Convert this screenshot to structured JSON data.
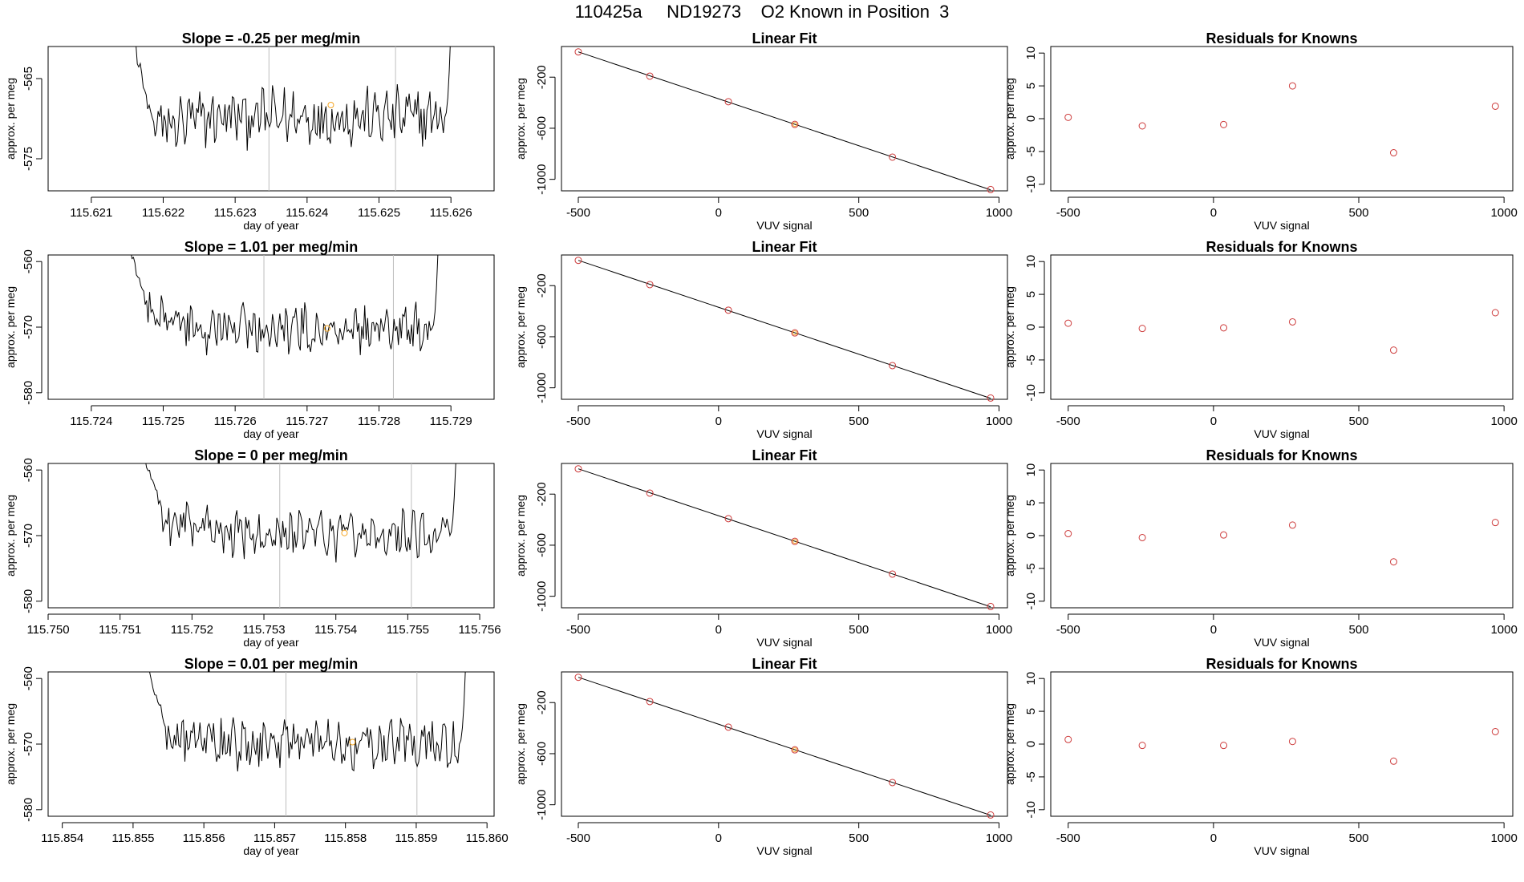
{
  "page": {
    "title": "110425a     ND19273    O2 Known in Position  3"
  },
  "colors": {
    "trace": "#000000",
    "axis": "#000000",
    "interval_line": "#bebebe",
    "fit_point": "#cd3b3b",
    "marker": "#f5a623",
    "fit_line": "#000000"
  },
  "chart_data": [
    {
      "type": "line",
      "row": 0,
      "panel": "time-trace",
      "title": "Slope =  -0.25  per meg/min",
      "xlabel": "day of year",
      "ylabel": "approx. per meg",
      "xlim": [
        115.6204,
        115.6266
      ],
      "ylim": [
        -579,
        -561
      ],
      "xticks": [
        "115.621",
        "115.622",
        "115.623",
        "115.624",
        "115.625",
        "115.626"
      ],
      "xtick_values": [
        115.621,
        115.622,
        115.623,
        115.624,
        115.625,
        115.626
      ],
      "yticks": [
        "-565",
        "-575"
      ],
      "ytick_values": [
        -565,
        -575
      ],
      "trace_start": 115.62133,
      "trace_end": 115.62608,
      "baseline": -569.8,
      "start_y": -572,
      "interval_lines": [
        115.62347,
        115.62523
      ],
      "marker": {
        "x": 115.62433,
        "y": -568.3
      }
    },
    {
      "type": "scatter",
      "row": 0,
      "panel": "linear-fit",
      "title": "Linear Fit",
      "xlabel": "VUV signal",
      "ylabel": "approx. per meg",
      "xlim": [
        -560,
        1030
      ],
      "ylim": [
        -1090,
        40
      ],
      "xticks": [
        "-500",
        "0",
        "500",
        "1000"
      ],
      "xtick_values": [
        -500,
        0,
        500,
        1000
      ],
      "yticks": [
        "-200",
        "-600",
        "-1000"
      ],
      "ytick_values": [
        -200,
        -600,
        -1000
      ],
      "points": [
        {
          "x": -500,
          "y": -2
        },
        {
          "x": -245,
          "y": -192
        },
        {
          "x": 35,
          "y": -392
        },
        {
          "x": 272,
          "y": -570
        },
        {
          "x": 620,
          "y": -826
        },
        {
          "x": 970,
          "y": -1080
        }
      ],
      "highlight_index": 3,
      "fit_line": [
        [
          -500,
          -2
        ],
        [
          970,
          -1082
        ]
      ]
    },
    {
      "type": "scatter",
      "row": 0,
      "panel": "residuals",
      "title": "Residuals for Knowns",
      "xlabel": "VUV signal",
      "ylabel": "approx. per meg",
      "xlim": [
        -560,
        1030
      ],
      "ylim": [
        -11,
        11
      ],
      "xticks": [
        "-500",
        "0",
        "500",
        "1000"
      ],
      "xtick_values": [
        -500,
        0,
        500,
        1000
      ],
      "yticks": [
        "10",
        "5",
        "0",
        "-5",
        "-10"
      ],
      "ytick_values": [
        10,
        5,
        0,
        -5,
        -10
      ],
      "points": [
        {
          "x": -500,
          "y": 0.2
        },
        {
          "x": -245,
          "y": -1.1
        },
        {
          "x": 35,
          "y": -0.9
        },
        {
          "x": 272,
          "y": 5.0
        },
        {
          "x": 620,
          "y": -5.2
        },
        {
          "x": 970,
          "y": 1.9
        }
      ]
    },
    {
      "type": "line",
      "row": 1,
      "panel": "time-trace",
      "title": "Slope =  1.01  per meg/min",
      "xlabel": "day of year",
      "ylabel": "approx. per meg",
      "xlim": [
        115.7234,
        115.7296
      ],
      "ylim": [
        -581,
        -559
      ],
      "xticks": [
        "115.724",
        "115.725",
        "115.726",
        "115.727",
        "115.728",
        "115.729"
      ],
      "xtick_values": [
        115.724,
        115.725,
        115.726,
        115.727,
        115.728,
        115.729
      ],
      "yticks": [
        "-560",
        "-570",
        "-580"
      ],
      "ytick_values": [
        -560,
        -570,
        -580
      ],
      "trace_start": 115.72422,
      "trace_end": 115.7289,
      "baseline": -570.2,
      "start_y": -567,
      "interval_lines": [
        115.7264,
        115.7282
      ],
      "marker": {
        "x": 115.72728,
        "y": -570.2
      }
    },
    {
      "type": "scatter",
      "row": 1,
      "panel": "linear-fit",
      "title": "Linear Fit",
      "xlabel": "VUV signal",
      "ylabel": "approx. per meg",
      "xlim": [
        -560,
        1030
      ],
      "ylim": [
        -1090,
        40
      ],
      "xticks": [
        "-500",
        "0",
        "500",
        "1000"
      ],
      "xtick_values": [
        -500,
        0,
        500,
        1000
      ],
      "yticks": [
        "-200",
        "-600",
        "-1000"
      ],
      "ytick_values": [
        -200,
        -600,
        -1000
      ],
      "points": [
        {
          "x": -500,
          "y": -2
        },
        {
          "x": -245,
          "y": -192
        },
        {
          "x": 35,
          "y": -392
        },
        {
          "x": 272,
          "y": -570
        },
        {
          "x": 620,
          "y": -826
        },
        {
          "x": 970,
          "y": -1080
        }
      ],
      "highlight_index": 3,
      "fit_line": [
        [
          -500,
          -2
        ],
        [
          970,
          -1082
        ]
      ]
    },
    {
      "type": "scatter",
      "row": 1,
      "panel": "residuals",
      "title": "Residuals for Knowns",
      "xlabel": "VUV signal",
      "ylabel": "approx. per meg",
      "xlim": [
        -560,
        1030
      ],
      "ylim": [
        -11,
        11
      ],
      "xticks": [
        "-500",
        "0",
        "500",
        "1000"
      ],
      "xtick_values": [
        -500,
        0,
        500,
        1000
      ],
      "yticks": [
        "10",
        "5",
        "0",
        "-5",
        "-10"
      ],
      "ytick_values": [
        10,
        5,
        0,
        -5,
        -10
      ],
      "points": [
        {
          "x": -500,
          "y": 0.6
        },
        {
          "x": -245,
          "y": -0.2
        },
        {
          "x": 35,
          "y": -0.1
        },
        {
          "x": 272,
          "y": 0.8
        },
        {
          "x": 620,
          "y": -3.5
        },
        {
          "x": 970,
          "y": 2.2
        }
      ]
    },
    {
      "type": "line",
      "row": 2,
      "panel": "time-trace",
      "title": "Slope =  0  per meg/min",
      "xlabel": "day of year",
      "ylabel": "approx. per meg",
      "xlim": [
        115.75,
        115.7562
      ],
      "ylim": [
        -581,
        -559
      ],
      "xticks": [
        "115.750",
        "115.751",
        "115.752",
        "115.753",
        "115.754",
        "115.755",
        "115.756"
      ],
      "xtick_values": [
        115.75,
        115.751,
        115.752,
        115.753,
        115.754,
        115.755,
        115.756
      ],
      "yticks": [
        "-560",
        "-570",
        "-580"
      ],
      "ytick_values": [
        -560,
        -570,
        -580
      ],
      "trace_start": 115.75102,
      "trace_end": 115.75575,
      "baseline": -570.0,
      "start_y": -566,
      "interval_lines": [
        115.75322,
        115.75505
      ],
      "marker": {
        "x": 115.75412,
        "y": -569.6
      }
    },
    {
      "type": "scatter",
      "row": 2,
      "panel": "linear-fit",
      "title": "Linear Fit",
      "xlabel": "VUV signal",
      "ylabel": "approx. per meg",
      "xlim": [
        -560,
        1030
      ],
      "ylim": [
        -1090,
        40
      ],
      "xticks": [
        "-500",
        "0",
        "500",
        "1000"
      ],
      "xtick_values": [
        -500,
        0,
        500,
        1000
      ],
      "yticks": [
        "-200",
        "-600",
        "-1000"
      ],
      "ytick_values": [
        -200,
        -600,
        -1000
      ],
      "points": [
        {
          "x": -500,
          "y": -2
        },
        {
          "x": -245,
          "y": -192
        },
        {
          "x": 35,
          "y": -392
        },
        {
          "x": 272,
          "y": -570
        },
        {
          "x": 620,
          "y": -826
        },
        {
          "x": 970,
          "y": -1080
        }
      ],
      "highlight_index": 3,
      "fit_line": [
        [
          -500,
          -2
        ],
        [
          970,
          -1082
        ]
      ]
    },
    {
      "type": "scatter",
      "row": 2,
      "panel": "residuals",
      "title": "Residuals for Knowns",
      "xlabel": "VUV signal",
      "ylabel": "approx. per meg",
      "xlim": [
        -560,
        1030
      ],
      "ylim": [
        -11,
        11
      ],
      "xticks": [
        "-500",
        "0",
        "500",
        "1000"
      ],
      "xtick_values": [
        -500,
        0,
        500,
        1000
      ],
      "yticks": [
        "10",
        "5",
        "0",
        "-5",
        "-10"
      ],
      "ytick_values": [
        10,
        5,
        0,
        -5,
        -10
      ],
      "points": [
        {
          "x": -500,
          "y": 0.3
        },
        {
          "x": -245,
          "y": -0.3
        },
        {
          "x": 35,
          "y": 0.1
        },
        {
          "x": 272,
          "y": 1.6
        },
        {
          "x": 620,
          "y": -4.0
        },
        {
          "x": 970,
          "y": 2.0
        }
      ]
    },
    {
      "type": "line",
      "row": 3,
      "panel": "time-trace",
      "title": "Slope =  0.01  per meg/min",
      "xlabel": "day of year",
      "ylabel": "approx. per meg",
      "xlim": [
        115.8538,
        115.8601
      ],
      "ylim": [
        -581,
        -559
      ],
      "xticks": [
        "115.854",
        "115.855",
        "115.856",
        "115.857",
        "115.858",
        "115.859",
        "115.860"
      ],
      "xtick_values": [
        115.854,
        115.855,
        115.856,
        115.857,
        115.858,
        115.859,
        115.86
      ],
      "yticks": [
        "-560",
        "-570",
        "-580"
      ],
      "ytick_values": [
        -560,
        -570,
        -580
      ],
      "trace_start": 115.85488,
      "trace_end": 115.85978,
      "baseline": -570.0,
      "start_y": -567,
      "interval_lines": [
        115.85716,
        115.85901
      ],
      "marker": {
        "x": 115.8581,
        "y": -569.7
      }
    },
    {
      "type": "scatter",
      "row": 3,
      "panel": "linear-fit",
      "title": "Linear Fit",
      "xlabel": "VUV signal",
      "ylabel": "approx. per meg",
      "xlim": [
        -560,
        1030
      ],
      "ylim": [
        -1090,
        40
      ],
      "xticks": [
        "-500",
        "0",
        "500",
        "1000"
      ],
      "xtick_values": [
        -500,
        0,
        500,
        1000
      ],
      "yticks": [
        "-200",
        "-600",
        "-1000"
      ],
      "ytick_values": [
        -200,
        -600,
        -1000
      ],
      "points": [
        {
          "x": -500,
          "y": -2
        },
        {
          "x": -245,
          "y": -192
        },
        {
          "x": 35,
          "y": -392
        },
        {
          "x": 272,
          "y": -570
        },
        {
          "x": 620,
          "y": -826
        },
        {
          "x": 970,
          "y": -1080
        }
      ],
      "highlight_index": 3,
      "fit_line": [
        [
          -500,
          -2
        ],
        [
          970,
          -1082
        ]
      ]
    },
    {
      "type": "scatter",
      "row": 3,
      "panel": "residuals",
      "title": "Residuals for Knowns",
      "xlabel": "VUV signal",
      "ylabel": "approx. per meg",
      "xlim": [
        -560,
        1030
      ],
      "ylim": [
        -11,
        11
      ],
      "xticks": [
        "-500",
        "0",
        "500",
        "1000"
      ],
      "xtick_values": [
        -500,
        0,
        500,
        1000
      ],
      "yticks": [
        "10",
        "5",
        "0",
        "-5",
        "-10"
      ],
      "ytick_values": [
        10,
        5,
        0,
        -5,
        -10
      ],
      "points": [
        {
          "x": -500,
          "y": 0.7
        },
        {
          "x": -245,
          "y": -0.2
        },
        {
          "x": 35,
          "y": -0.2
        },
        {
          "x": 272,
          "y": 0.4
        },
        {
          "x": 620,
          "y": -2.6
        },
        {
          "x": 970,
          "y": 1.9
        }
      ]
    }
  ]
}
